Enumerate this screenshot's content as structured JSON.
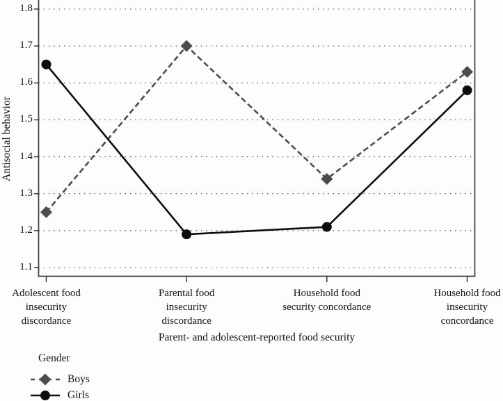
{
  "chart_data": {
    "type": "line",
    "title": "",
    "xlabel": "Parent- and adolescent-reported food security",
    "ylabel": "Antisocial behavior",
    "ylim": [
      1.1,
      1.8
    ],
    "yticks": [
      1.8,
      1.7,
      1.6,
      1.5,
      1.4,
      1.3,
      1.2,
      1.1
    ],
    "grid": "horizontal dotted gridlines at each y tick",
    "categories": [
      "Adolescent food\ninsecurity\ndiscordance",
      "Parental food\ninsecurity\ndiscordance",
      "Household food\nsecurity concordance",
      "Household food\ninsecurity\nconcordance"
    ],
    "series": [
      {
        "name": "Boys",
        "values": [
          1.25,
          1.7,
          1.34,
          1.63
        ],
        "color": "#4d4d4d",
        "line_style": "dashed",
        "marker": "diamond"
      },
      {
        "name": "Girls",
        "values": [
          1.65,
          1.19,
          1.21,
          1.58
        ],
        "color": "#0d0d0d",
        "line_style": "solid",
        "marker": "circle"
      }
    ],
    "legend": {
      "title": "Gender",
      "position": "bottom-left",
      "entries": [
        "Boys",
        "Girls"
      ]
    }
  },
  "colors": {
    "background": "#fdfdfd",
    "axis": "#3b3b3b",
    "grid": "#303030"
  }
}
